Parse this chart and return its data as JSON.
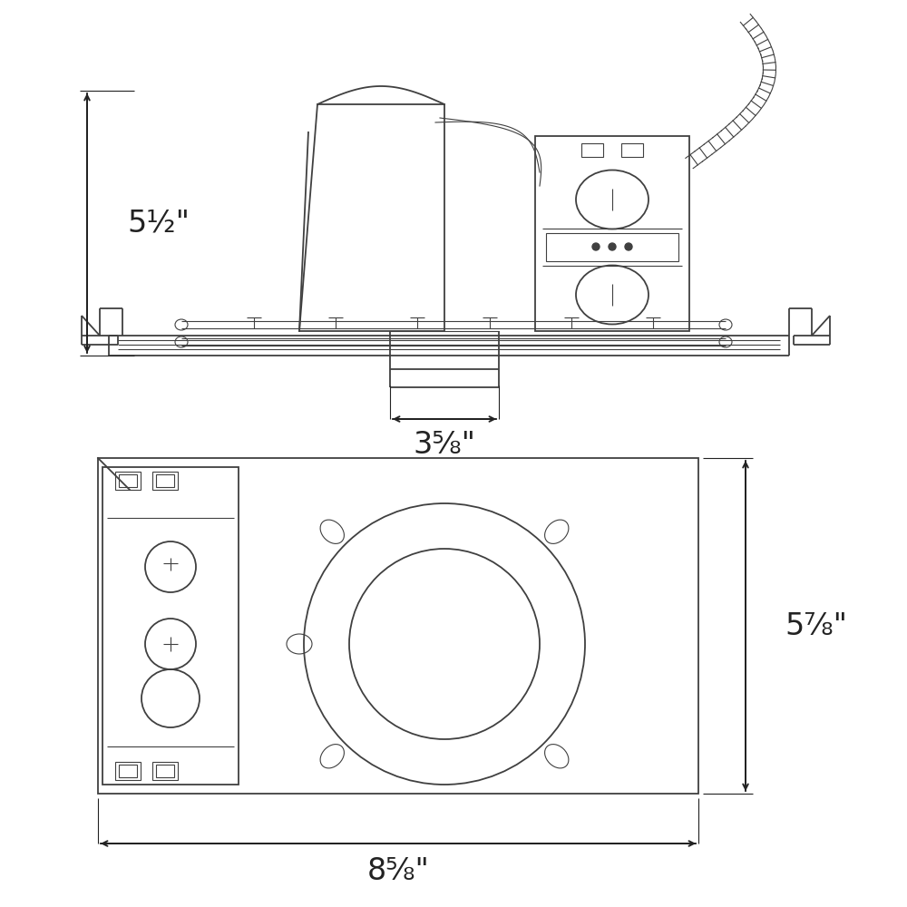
{
  "bg_color": "#ffffff",
  "lc": "#404040",
  "lw": 1.3,
  "tlw": 0.8,
  "dc": "#222222",
  "dim_fs": 24,
  "label_51_2": "5½\"",
  "label_35_8": "3⅝\"",
  "label_57_8": "5⅞\"",
  "label_85_8": "8⅝\""
}
